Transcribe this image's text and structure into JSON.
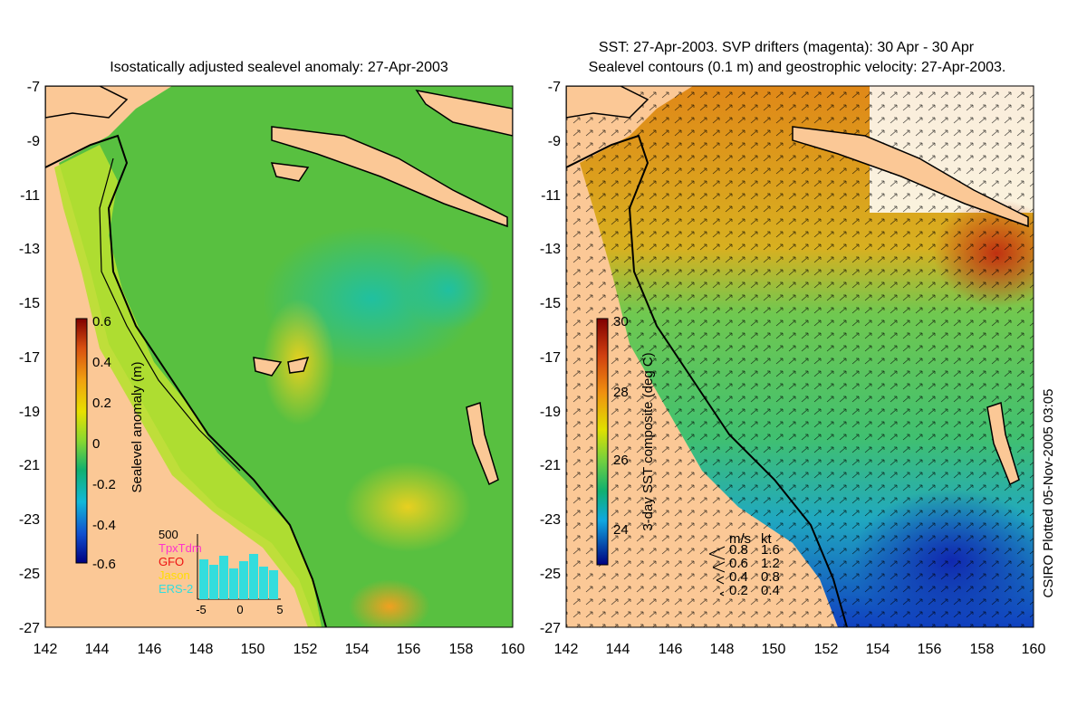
{
  "left_panel": {
    "title": "Isostatically adjusted sealevel anomaly: 27-Apr-2003",
    "lat_ticks": [
      "-7",
      "-9",
      "-11",
      "-13",
      "-15",
      "-17",
      "-19",
      "-21",
      "-23",
      "-25",
      "-27"
    ],
    "lon_ticks": [
      "142",
      "144",
      "146",
      "148",
      "150",
      "152",
      "154",
      "156",
      "158",
      "160"
    ],
    "colorbar": {
      "label": "Sealevel anomaly (m)",
      "ticks": [
        "0.6",
        "0.4",
        "0.2",
        "0",
        "-0.2",
        "-0.4",
        "-0.6"
      ],
      "range": [
        -0.6,
        0.6
      ]
    },
    "satellite_histogram": {
      "y_max_label": "500",
      "x_ticks": [
        "-5",
        "0",
        "5"
      ],
      "legend": [
        {
          "name": "TpxTdm",
          "color": "#ff33cc"
        },
        {
          "name": "GFO",
          "color": "#ee1111"
        },
        {
          "name": "Jason",
          "color": "#ffdd00"
        },
        {
          "name": "ERS-2",
          "color": "#33dddd"
        }
      ]
    }
  },
  "right_panel": {
    "title_line1": "SST: 27-Apr-2003. SVP drifters (magenta): 30 Apr - 30 Apr",
    "title_line2": "Sealevel contours (0.1 m) and geostrophic velocity: 27-Apr-2003.",
    "lat_ticks": [
      "-7",
      "-9",
      "-11",
      "-13",
      "-15",
      "-17",
      "-19",
      "-21",
      "-23",
      "-25",
      "-27"
    ],
    "lon_ticks": [
      "142",
      "144",
      "146",
      "148",
      "150",
      "152",
      "154",
      "156",
      "158",
      "160"
    ],
    "colorbar": {
      "label": "3-day SST composite (deg C)",
      "ticks": [
        "30",
        "28",
        "26",
        "24"
      ],
      "range": [
        23,
        30
      ]
    },
    "velocity_legend": {
      "header_ms": "m/s",
      "header_kt": "kt",
      "rows": [
        {
          "ms": "0.8",
          "kt": "1.6"
        },
        {
          "ms": "0.6",
          "kt": "1.2"
        },
        {
          "ms": "0.4",
          "kt": "0.8"
        },
        {
          "ms": "0.2",
          "kt": "0.4"
        }
      ]
    }
  },
  "credit": "CSIRO Plotted 05-Nov-2005 03:05",
  "colors": {
    "land": "#fbc896",
    "sla_mid": "#66cc33",
    "sst_warm": "#e07a10",
    "sst_cool": "#1040c0"
  }
}
